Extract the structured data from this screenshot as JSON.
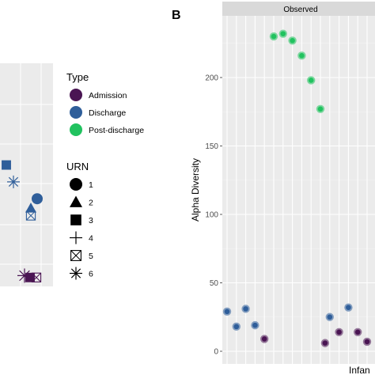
{
  "chart_data": {
    "type": "scatter",
    "panel_label": "B",
    "facet_strip": "Observed",
    "ylabel": "Alpha Diversity",
    "xlabel_partial": "Infan",
    "ylim": [
      0,
      250
    ],
    "yticks": [
      0,
      50,
      100,
      150,
      200
    ],
    "yticks_labels": [
      "0",
      "50",
      "100",
      "150",
      "200"
    ],
    "grid": true,
    "legend_position": "right of left panel",
    "colors": {
      "Admission": "#4a1553",
      "Discharge": "#2f5e9a",
      "Post-discharge": "#21c25f",
      "panel_bg": "#ebebeb",
      "strip_bg": "#d9d9d9"
    },
    "type_legend": {
      "title": "Type",
      "entries": [
        "Admission",
        "Discharge",
        "Post-discharge"
      ]
    },
    "urn_legend": {
      "title": "URN",
      "entries": [
        {
          "label": "1",
          "shape": "circle"
        },
        {
          "label": "2",
          "shape": "triangle"
        },
        {
          "label": "3",
          "shape": "square"
        },
        {
          "label": "4",
          "shape": "plus"
        },
        {
          "label": "5",
          "shape": "square-x"
        },
        {
          "label": "6",
          "shape": "asterisk"
        }
      ]
    },
    "series": [
      {
        "name": "Post-discharge",
        "points": [
          {
            "x": 5,
            "y": 230
          },
          {
            "x": 6,
            "y": 232
          },
          {
            "x": 7,
            "y": 227
          },
          {
            "x": 8,
            "y": 216
          },
          {
            "x": 9,
            "y": 198
          },
          {
            "x": 10,
            "y": 177
          }
        ]
      },
      {
        "name": "Discharge",
        "points": [
          {
            "x": 0,
            "y": 29
          },
          {
            "x": 1,
            "y": 18
          },
          {
            "x": 2,
            "y": 31
          },
          {
            "x": 3,
            "y": 19
          },
          {
            "x": 11,
            "y": 25
          },
          {
            "x": 13,
            "y": 32
          }
        ]
      },
      {
        "name": "Admission",
        "points": [
          {
            "x": 4,
            "y": 9
          },
          {
            "x": 10.5,
            "y": 6
          },
          {
            "x": 12,
            "y": 14
          },
          {
            "x": 14,
            "y": 14
          },
          {
            "x": 15,
            "y": 7
          }
        ]
      }
    ],
    "left_panel_points": [
      {
        "type": "Discharge",
        "urn": "3",
        "y_frac": 0.44
      },
      {
        "type": "Discharge",
        "urn": "6",
        "y_frac": 0.485
      },
      {
        "type": "Discharge",
        "urn": "1",
        "y_frac": 0.53
      },
      {
        "type": "Discharge",
        "urn": "2",
        "y_frac": 0.555
      },
      {
        "type": "Discharge",
        "urn": "5",
        "y_frac": 0.575
      },
      {
        "type": "Admission",
        "urn": "6",
        "y_frac": 0.735
      },
      {
        "type": "Admission",
        "urn": "3",
        "y_frac": 0.74
      },
      {
        "type": "Admission",
        "urn": "5",
        "y_frac": 0.74
      }
    ]
  }
}
